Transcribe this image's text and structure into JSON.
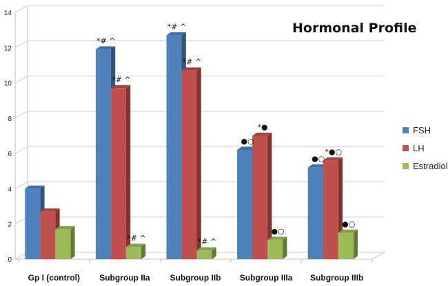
{
  "chart_data": {
    "type": "bar",
    "title": "Hormonal Profile",
    "xlabel": "",
    "ylabel": "",
    "ylim": [
      0,
      14
    ],
    "yticks": [
      "0",
      "2",
      "4",
      "6",
      "8",
      "10",
      "12",
      "14"
    ],
    "grid": true,
    "legend_position": "right",
    "categories": [
      "Gp I (control)",
      "Subgroup IIa",
      "Subgroup IIb",
      "Subgroup IIIa",
      "Subgroup IIIb"
    ],
    "series": [
      {
        "name": "FSH",
        "color": "#4F81BD",
        "values": [
          4.0,
          11.9,
          12.7,
          6.2,
          5.2
        ]
      },
      {
        "name": "LH",
        "color": "#C0504D",
        "values": [
          2.7,
          9.7,
          10.7,
          7.0,
          5.6
        ]
      },
      {
        "name": "Estradiol",
        "color": "#9BBB59",
        "values": [
          1.7,
          0.7,
          0.5,
          1.1,
          1.5
        ]
      }
    ],
    "annotations": [
      {
        "category": 1,
        "series": 0,
        "text": "*# ^"
      },
      {
        "category": 1,
        "series": 1,
        "text": "*# ^"
      },
      {
        "category": 1,
        "series": 2,
        "text": "*# ^"
      },
      {
        "category": 2,
        "series": 0,
        "text": "*# ^"
      },
      {
        "category": 2,
        "series": 1,
        "text": "*# ^"
      },
      {
        "category": 2,
        "series": 2,
        "text": "*# ^"
      },
      {
        "category": 3,
        "series": 0,
        "text": "●○"
      },
      {
        "category": 3,
        "series": 1,
        "text": "*●"
      },
      {
        "category": 3,
        "series": 2,
        "text": "●○"
      },
      {
        "category": 4,
        "series": 0,
        "text": "●○"
      },
      {
        "category": 4,
        "series": 1,
        "text": "*●○"
      },
      {
        "category": 4,
        "series": 2,
        "text": "●○"
      }
    ]
  }
}
